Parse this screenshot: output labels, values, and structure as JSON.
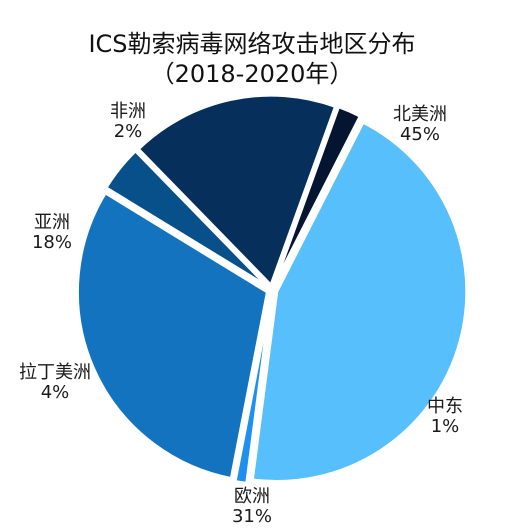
{
  "chart_data": {
    "type": "pie",
    "title": "ICS勒索病毒网络攻击地区分布",
    "subtitle": "（2018-2020年）",
    "slices": [
      {
        "label": "北美洲",
        "value": 45,
        "value_text": "45%",
        "color": "#56BFFC"
      },
      {
        "label": "中东",
        "value": 1,
        "value_text": "1%",
        "color": "#1E90F0"
      },
      {
        "label": "欧洲",
        "value": 31,
        "value_text": "31%",
        "color": "#1473BE"
      },
      {
        "label": "拉丁美洲",
        "value": 4,
        "value_text": "4%",
        "color": "#08508A"
      },
      {
        "label": "亚洲",
        "value": 18,
        "value_text": "18%",
        "color": "#062F5C"
      },
      {
        "label": "非洲",
        "value": 2,
        "value_text": "2%",
        "color": "#031530"
      }
    ],
    "legend": "none"
  }
}
